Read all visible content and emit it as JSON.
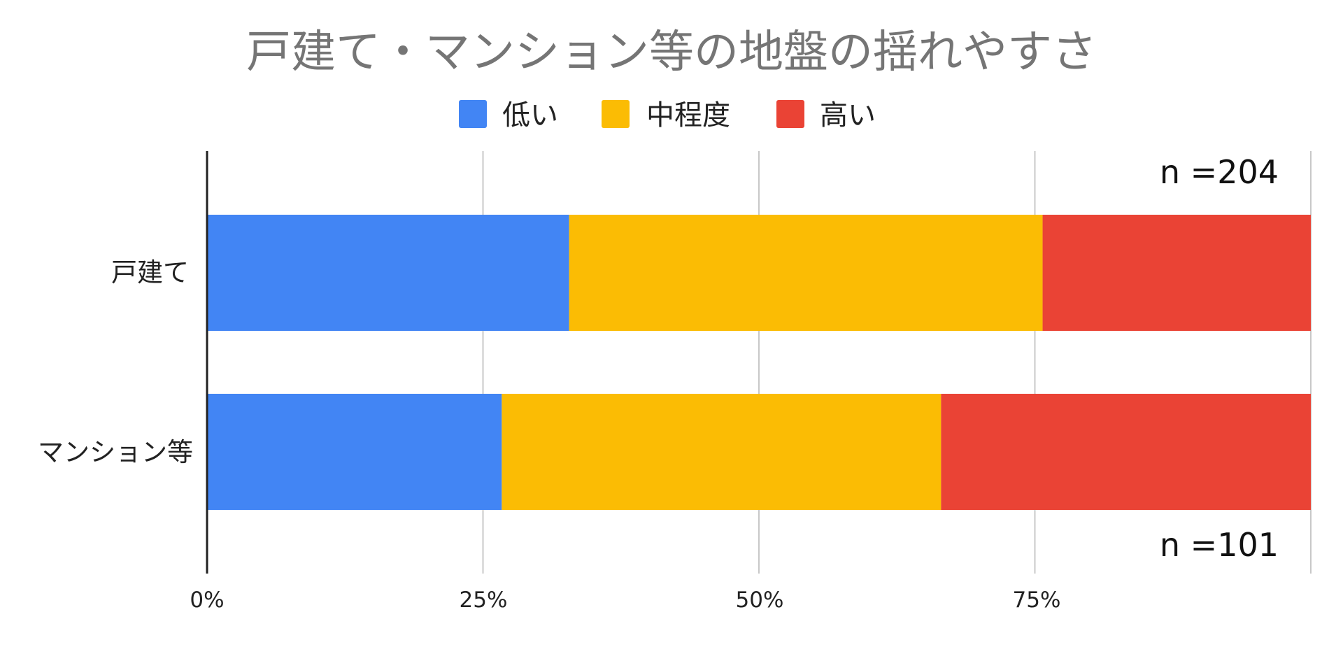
{
  "colors": {
    "low": "#4285F4",
    "mid": "#FBBC04",
    "high": "#EA4335"
  },
  "chart_data": {
    "type": "bar",
    "orientation": "horizontal",
    "stacked": "percent",
    "title": "戸建て・マンション等の地盤の揺れやすさ",
    "categories": [
      "戸建て",
      "マンション等"
    ],
    "series": [
      {
        "name": "低い",
        "color": "#4285F4",
        "values": [
          32.8,
          26.7
        ]
      },
      {
        "name": "中程度",
        "color": "#FBBC04",
        "values": [
          42.9,
          39.8
        ]
      },
      {
        "name": "高い",
        "color": "#EA4335",
        "values": [
          24.3,
          33.5
        ]
      }
    ],
    "xlim": [
      0,
      100
    ],
    "xticks": [
      "0%",
      "25%",
      "50%",
      "75%"
    ],
    "grid": true,
    "legend": "top",
    "annotations": [
      "n =204",
      "n =101"
    ]
  }
}
